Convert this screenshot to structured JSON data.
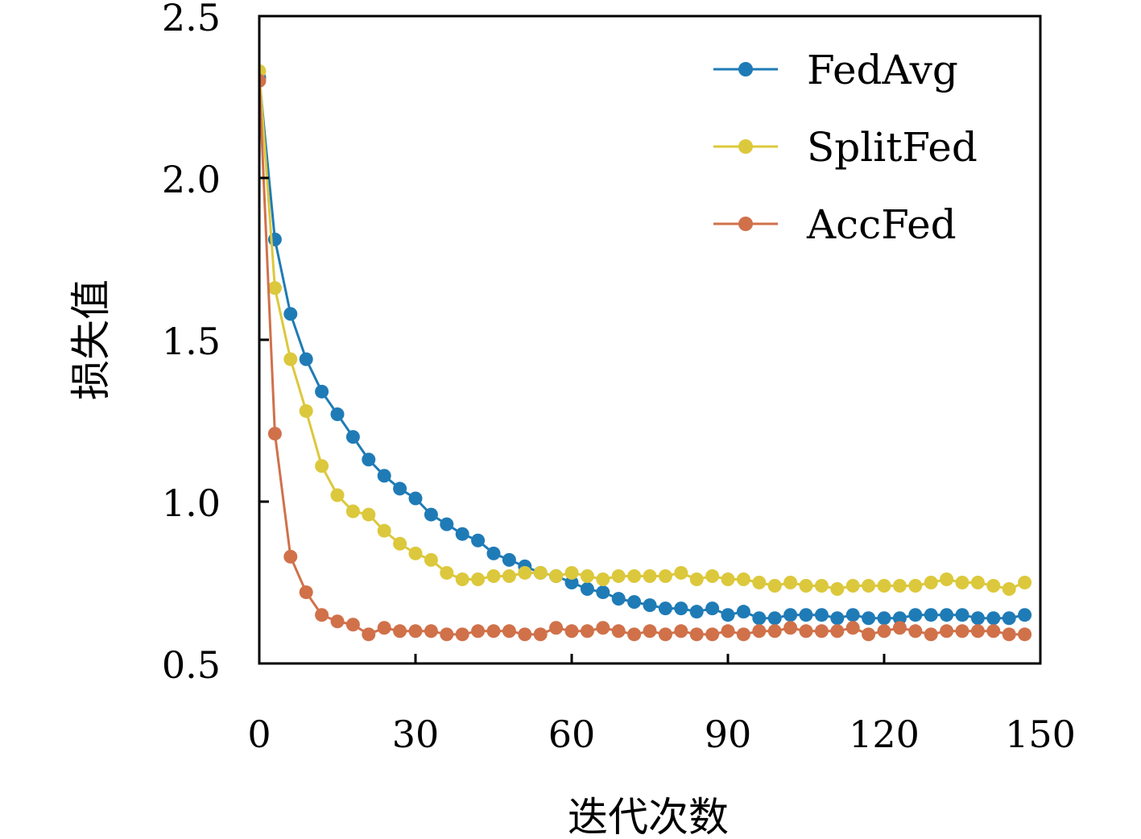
{
  "chart_data": {
    "type": "line",
    "title": "",
    "xlabel": "迭代次数",
    "ylabel": "损失值",
    "xlim": [
      0,
      150
    ],
    "ylim": [
      0.5,
      2.5
    ],
    "xticks": [
      0,
      30,
      60,
      90,
      120,
      150
    ],
    "xtick_labels": [
      "0",
      "30",
      "60",
      "90",
      "120",
      "150"
    ],
    "yticks": [
      0.5,
      1.0,
      1.5,
      2.0,
      2.5
    ],
    "ytick_labels": [
      "0.5",
      "1.0",
      "1.5",
      "2.0",
      "2.5"
    ],
    "grid": false,
    "legend_position": "top-right",
    "markers": true,
    "x": [
      0,
      3,
      6,
      9,
      12,
      15,
      18,
      21,
      24,
      27,
      30,
      33,
      36,
      39,
      42,
      45,
      48,
      51,
      54,
      57,
      60,
      63,
      66,
      69,
      72,
      75,
      78,
      81,
      84,
      87,
      90,
      93,
      96,
      99,
      102,
      105,
      108,
      111,
      114,
      117,
      120,
      123,
      126,
      129,
      132,
      135,
      138,
      141,
      144,
      147
    ],
    "series": [
      {
        "name": "FedAvg",
        "color": "#1f7bb6",
        "values": [
          2.31,
          1.81,
          1.58,
          1.44,
          1.34,
          1.27,
          1.2,
          1.13,
          1.08,
          1.04,
          1.01,
          0.96,
          0.93,
          0.9,
          0.88,
          0.84,
          0.82,
          0.8,
          0.78,
          0.77,
          0.75,
          0.73,
          0.72,
          0.7,
          0.69,
          0.68,
          0.67,
          0.67,
          0.66,
          0.67,
          0.65,
          0.66,
          0.64,
          0.64,
          0.65,
          0.65,
          0.65,
          0.64,
          0.65,
          0.64,
          0.64,
          0.64,
          0.65,
          0.65,
          0.65,
          0.65,
          0.64,
          0.64,
          0.64,
          0.65
        ]
      },
      {
        "name": "SplitFed",
        "color": "#dcc83c",
        "values": [
          2.33,
          1.66,
          1.44,
          1.28,
          1.11,
          1.02,
          0.97,
          0.96,
          0.91,
          0.87,
          0.84,
          0.82,
          0.78,
          0.76,
          0.76,
          0.77,
          0.77,
          0.78,
          0.78,
          0.77,
          0.78,
          0.77,
          0.76,
          0.77,
          0.77,
          0.77,
          0.77,
          0.78,
          0.76,
          0.77,
          0.76,
          0.76,
          0.75,
          0.74,
          0.75,
          0.74,
          0.74,
          0.73,
          0.74,
          0.74,
          0.74,
          0.74,
          0.74,
          0.75,
          0.76,
          0.75,
          0.75,
          0.74,
          0.73,
          0.75
        ]
      },
      {
        "name": "AccFed",
        "color": "#d0714a",
        "values": [
          2.3,
          1.21,
          0.83,
          0.72,
          0.65,
          0.63,
          0.62,
          0.59,
          0.61,
          0.6,
          0.6,
          0.6,
          0.59,
          0.59,
          0.6,
          0.6,
          0.6,
          0.59,
          0.59,
          0.61,
          0.6,
          0.6,
          0.61,
          0.6,
          0.59,
          0.6,
          0.59,
          0.6,
          0.59,
          0.59,
          0.6,
          0.59,
          0.6,
          0.6,
          0.61,
          0.6,
          0.6,
          0.6,
          0.61,
          0.59,
          0.6,
          0.61,
          0.6,
          0.59,
          0.6,
          0.6,
          0.6,
          0.6,
          0.59,
          0.59
        ]
      }
    ]
  }
}
